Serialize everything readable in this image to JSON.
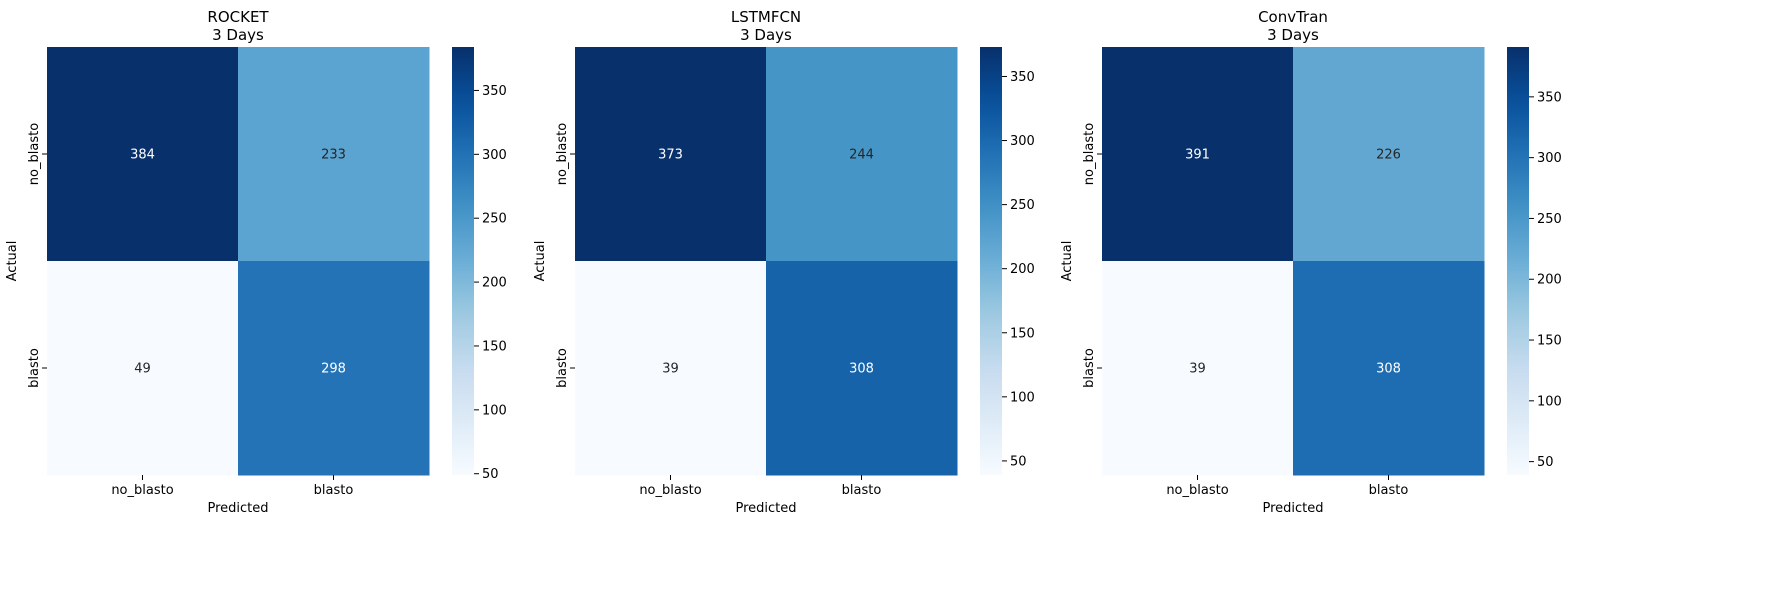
{
  "chart_data": [
    {
      "type": "heatmap",
      "title": "ROCKET",
      "subtitle": "3 Days",
      "xlabel": "Predicted",
      "ylabel": "Actual",
      "x_categories": [
        "no_blasto",
        "blasto"
      ],
      "y_categories": [
        "no_blasto",
        "blasto"
      ],
      "values": [
        [
          384,
          233
        ],
        [
          49,
          298
        ]
      ],
      "colormap": "Blues",
      "vmin": 49,
      "vmax": 384,
      "colorbar_ticks": [
        50,
        100,
        150,
        200,
        250,
        300,
        350
      ]
    },
    {
      "type": "heatmap",
      "title": "LSTMFCN",
      "subtitle": "3 Days",
      "xlabel": "Predicted",
      "ylabel": "Actual",
      "x_categories": [
        "no_blasto",
        "blasto"
      ],
      "y_categories": [
        "no_blasto",
        "blasto"
      ],
      "values": [
        [
          373,
          244
        ],
        [
          39,
          308
        ]
      ],
      "colormap": "Blues",
      "vmin": 39,
      "vmax": 373,
      "colorbar_ticks": [
        50,
        100,
        150,
        200,
        250,
        300,
        350
      ]
    },
    {
      "type": "heatmap",
      "title": "ConvTran",
      "subtitle": "3 Days",
      "xlabel": "Predicted",
      "ylabel": "Actual",
      "x_categories": [
        "no_blasto",
        "blasto"
      ],
      "y_categories": [
        "no_blasto",
        "blasto"
      ],
      "values": [
        [
          391,
          226
        ],
        [
          39,
          308
        ]
      ],
      "colormap": "Blues",
      "vmin": 39,
      "vmax": 391,
      "colorbar_ticks": [
        50,
        100,
        150,
        200,
        250,
        300,
        350
      ]
    }
  ]
}
